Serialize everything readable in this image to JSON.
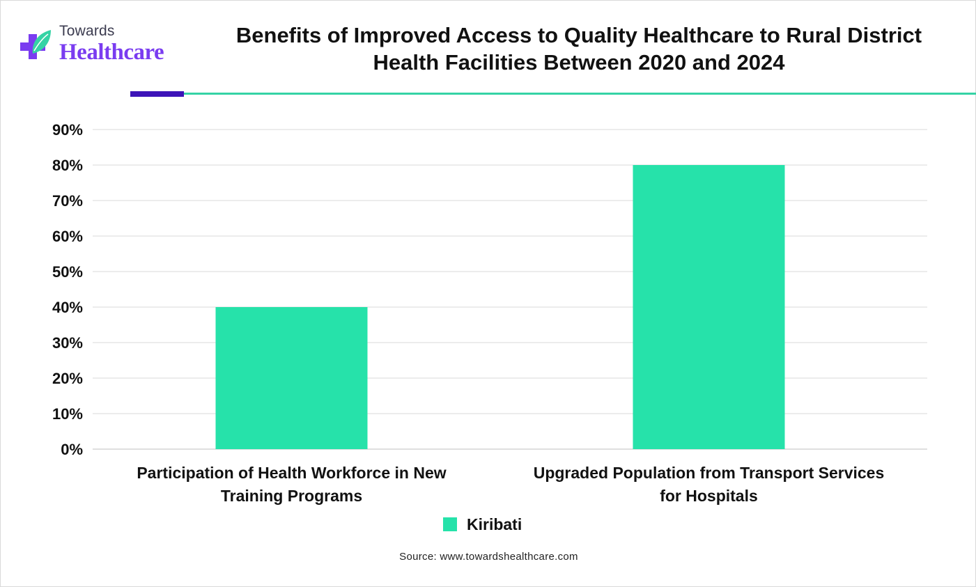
{
  "brand": {
    "top_text": "Towards",
    "main_text": "Healthcare",
    "colors": {
      "purple": "#7a3cf0",
      "green": "#35d3a5",
      "navy": "#3d14b8"
    }
  },
  "title": {
    "line1": "Benefits of Improved Access to Quality Healthcare to Rural District",
    "line2": "Health Facilities Between 2020 and 2024"
  },
  "chart_data": {
    "type": "bar",
    "categories": [
      [
        "Participation of Health Workforce in New",
        "Training Programs"
      ],
      [
        "Upgraded Population from Transport Services",
        "for Hospitals"
      ]
    ],
    "series": [
      {
        "name": "Kiribati",
        "values": [
          40,
          80
        ],
        "color": "#26e2aa"
      }
    ],
    "yticks": [
      "0%",
      "10%",
      "20%",
      "30%",
      "40%",
      "50%",
      "60%",
      "70%",
      "80%",
      "90%"
    ],
    "ylim": [
      0,
      90
    ],
    "ystep": 10,
    "grid": true,
    "legend": "bottom-center",
    "title": "Benefits of Improved Access to Quality Healthcare to Rural District Health Facilities Between 2020 and 2024",
    "xlabel": "",
    "ylabel": ""
  },
  "legend": {
    "label": "Kiribati"
  },
  "source": "Source: www.towardshealthcare.com"
}
